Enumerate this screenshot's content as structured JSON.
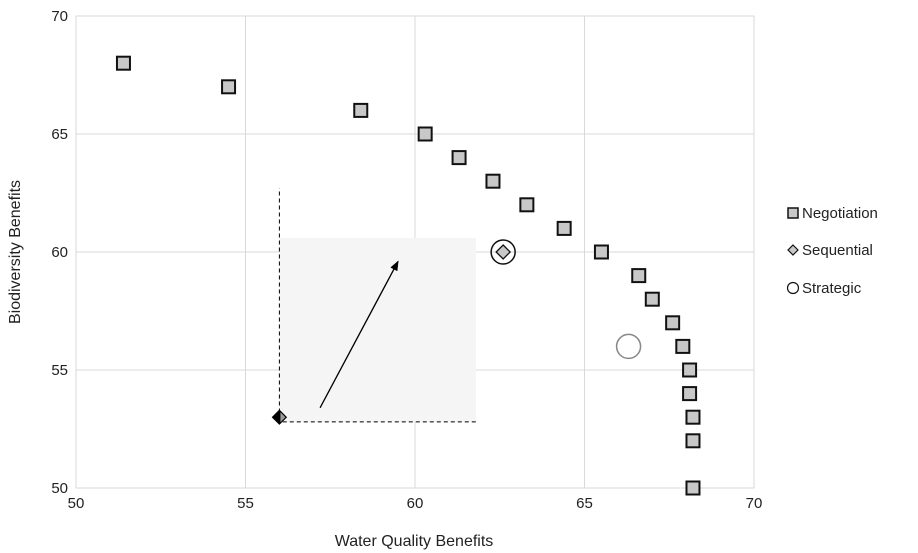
{
  "chart_data": {
    "type": "scatter",
    "title": "",
    "xlabel": "Water Quality Benefits",
    "ylabel": "Biodiversity Benefits",
    "xlim": [
      50,
      70
    ],
    "ylim": [
      50,
      70
    ],
    "x_ticks": [
      50,
      55,
      60,
      65,
      70
    ],
    "y_ticks": [
      50,
      55,
      60,
      65,
      70
    ],
    "grid": true,
    "legend_position": "right",
    "series": [
      {
        "name": "Negotiation",
        "marker": "square",
        "color": "#c8c8c8",
        "points": [
          {
            "x": 51.4,
            "y": 68
          },
          {
            "x": 54.5,
            "y": 67
          },
          {
            "x": 58.4,
            "y": 66
          },
          {
            "x": 60.3,
            "y": 65
          },
          {
            "x": 61.3,
            "y": 64
          },
          {
            "x": 62.3,
            "y": 63
          },
          {
            "x": 63.3,
            "y": 62
          },
          {
            "x": 64.4,
            "y": 61
          },
          {
            "x": 65.5,
            "y": 60
          },
          {
            "x": 66.6,
            "y": 59
          },
          {
            "x": 67.0,
            "y": 58
          },
          {
            "x": 67.6,
            "y": 57
          },
          {
            "x": 67.9,
            "y": 56
          },
          {
            "x": 68.1,
            "y": 55
          },
          {
            "x": 68.1,
            "y": 54
          },
          {
            "x": 68.2,
            "y": 53
          },
          {
            "x": 68.2,
            "y": 52
          },
          {
            "x": 68.2,
            "y": 50
          }
        ]
      },
      {
        "name": "Sequential",
        "marker": "diamond",
        "color": "#c8c8c8",
        "points": [
          {
            "x": 62.6,
            "y": 60
          }
        ]
      },
      {
        "name": "Strategic",
        "marker": "circle",
        "color": "#ffffff",
        "points": [
          {
            "x": 66.3,
            "y": 56
          },
          {
            "x": 62.6,
            "y": 60
          }
        ]
      }
    ],
    "annotations": {
      "start_point": {
        "x": 56.0,
        "y": 53.0,
        "marker": "diamond",
        "color": "#000000"
      },
      "shaded_region": {
        "x0": 56.0,
        "x1": 61.8,
        "y0": 52.8,
        "y1": 60.6,
        "color": "#f5f5f5"
      },
      "arrow": {
        "x0": 57.2,
        "y0": 53.4,
        "x1": 59.5,
        "y1": 59.6
      },
      "dashed_vertical": {
        "x": 56.0,
        "y0": 52.9,
        "y1": 62.7
      },
      "dashed_horizontal": {
        "y": 52.8,
        "x0": 56.1,
        "x1": 61.8
      }
    }
  }
}
